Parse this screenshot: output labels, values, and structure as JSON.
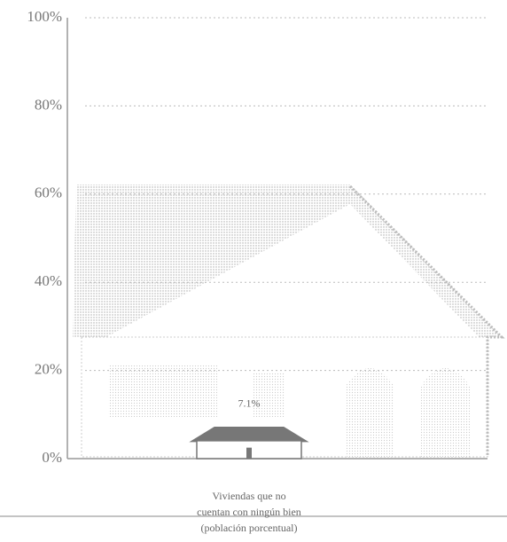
{
  "chart_data": {
    "type": "bar",
    "categories": [
      "Viviendas que no cuentan con ningún bien (población porcentual)"
    ],
    "values": [
      7.1
    ],
    "value_labels": [
      "7.1%"
    ],
    "color": "#777777",
    "ylim": [
      0,
      100
    ],
    "yticks": [
      {
        "value": 0,
        "label": "0%"
      },
      {
        "value": 20,
        "label": "20%"
      },
      {
        "value": 40,
        "label": "40%"
      },
      {
        "value": 60,
        "label": "60%"
      },
      {
        "value": 80,
        "label": "80%"
      },
      {
        "value": 100,
        "label": "100%"
      }
    ],
    "grid": true
  }
}
